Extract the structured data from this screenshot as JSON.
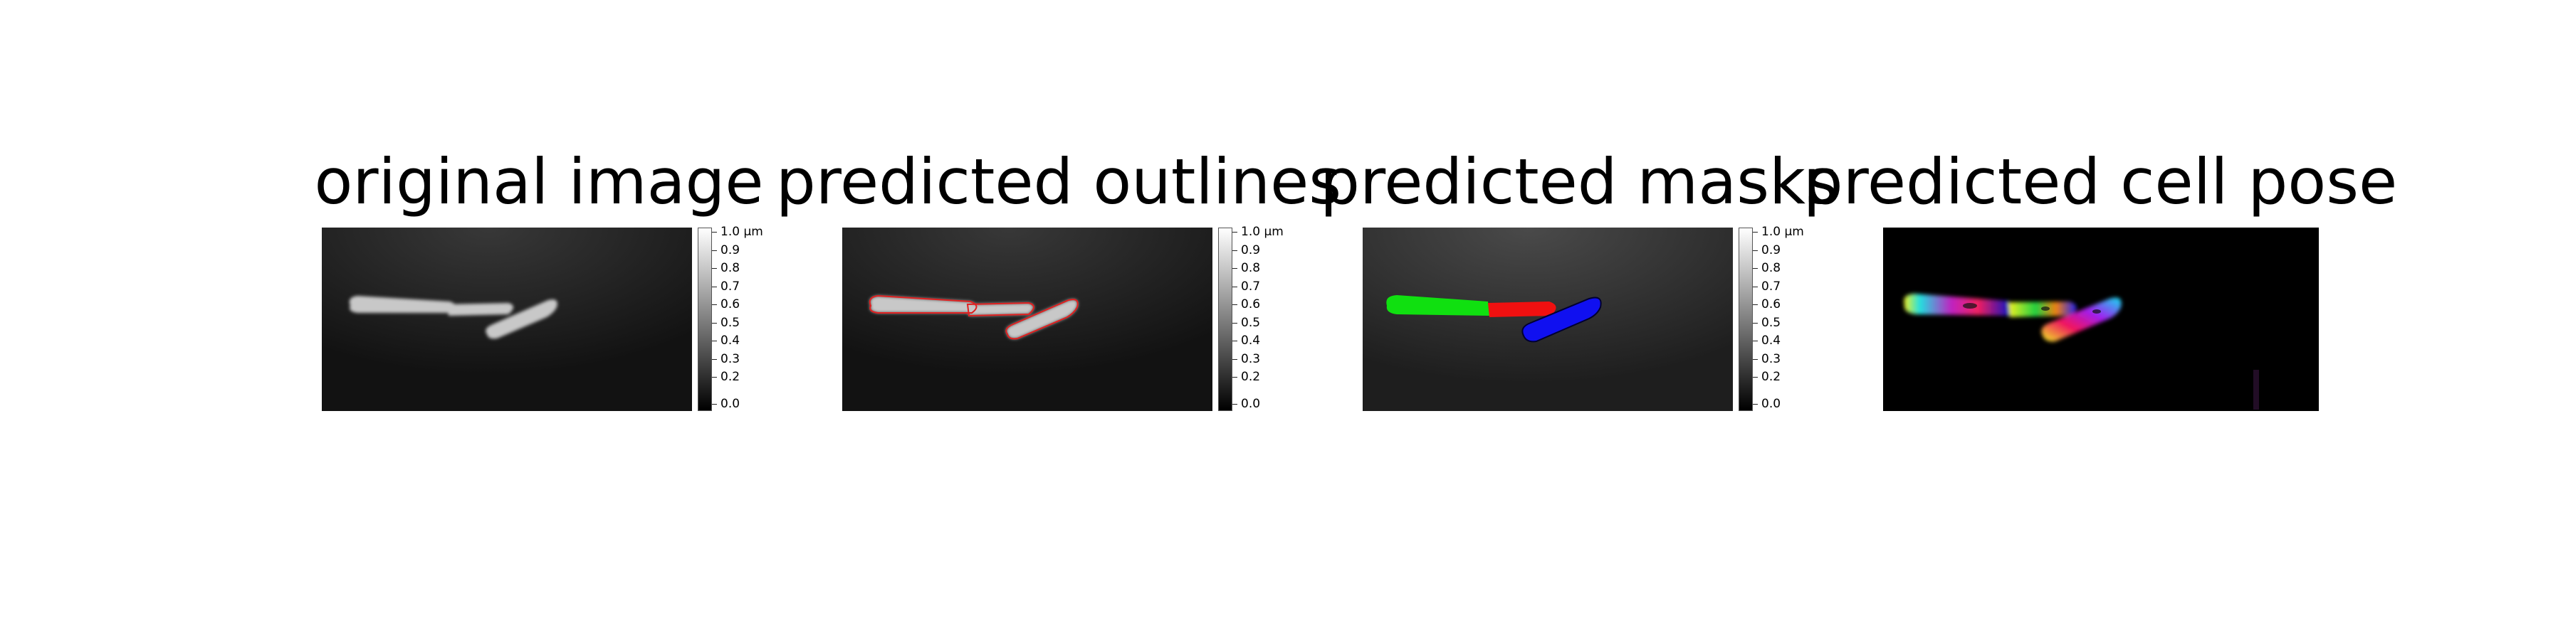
{
  "panels": [
    {
      "title": "original image"
    },
    {
      "title": "predicted outlines"
    },
    {
      "title": "predicted masks"
    },
    {
      "title": "predicted cell pose"
    }
  ],
  "colorbar": {
    "labels": [
      "1.0 μm",
      "0.9",
      "0.8",
      "0.7",
      "0.6",
      "0.5",
      "0.4",
      "0.3",
      "0.2",
      "0.0"
    ]
  },
  "colors": {
    "outline": "#e02020",
    "mask_1": "#10e010",
    "mask_2": "#f01010",
    "mask_3": "#1010f0",
    "background": "#161616"
  }
}
